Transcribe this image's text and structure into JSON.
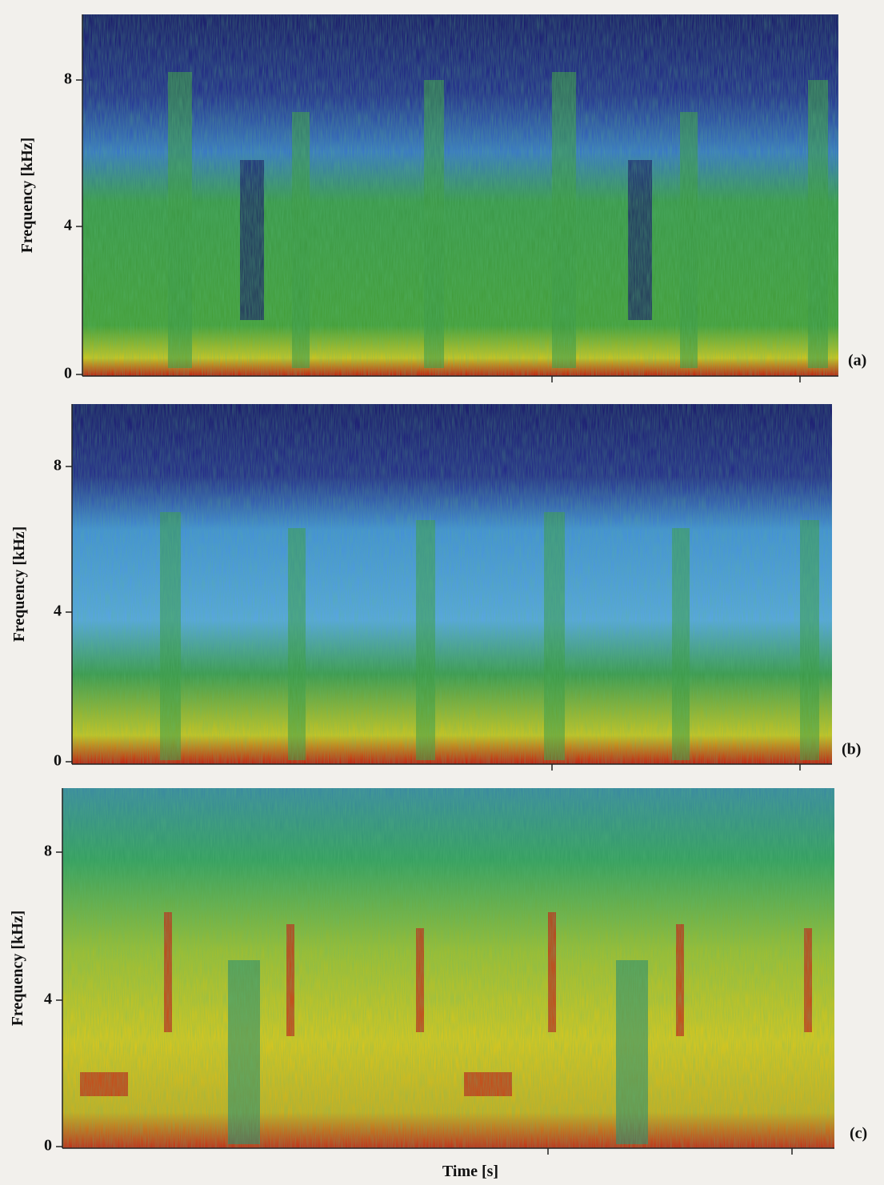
{
  "figure": {
    "panels": [
      {
        "label": "(a)",
        "y_axis_label": "Frequency [kHz]",
        "yticks": [
          8,
          4,
          0
        ]
      },
      {
        "label": "(b)",
        "y_axis_label": "Frequency [kHz]",
        "yticks": [
          8,
          4,
          0
        ]
      },
      {
        "label": "(c)",
        "y_axis_label": "Frequency [kHz]",
        "yticks": [
          8,
          4,
          0
        ]
      }
    ],
    "x_axis_label": "Time [s]"
  }
}
